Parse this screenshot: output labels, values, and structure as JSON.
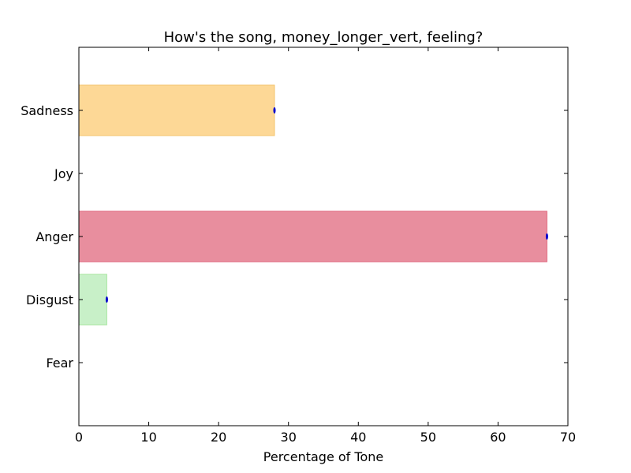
{
  "chart_data": {
    "type": "bar",
    "orientation": "horizontal",
    "title": "How's the song, money_longer_vert, feeling?",
    "xlabel": "Percentage of Tone",
    "ylabel": "",
    "xlim": [
      0,
      70
    ],
    "xticks": [
      0,
      10,
      20,
      30,
      40,
      50,
      60,
      70
    ],
    "grid": false,
    "categories": [
      "Sadness",
      "Joy",
      "Anger",
      "Disgust",
      "Fear"
    ],
    "values": [
      28,
      0,
      67,
      4,
      0
    ],
    "colors": [
      "#fdd896",
      "#a8e6a1",
      "#e88e9e",
      "#c8f0c8",
      "#cccccc"
    ],
    "edge_colors": [
      "#f3c46e",
      "#8fd888",
      "#e06a80",
      "#a8e6a1",
      "#aaaaaa"
    ],
    "marker_color": "#0000cc"
  }
}
